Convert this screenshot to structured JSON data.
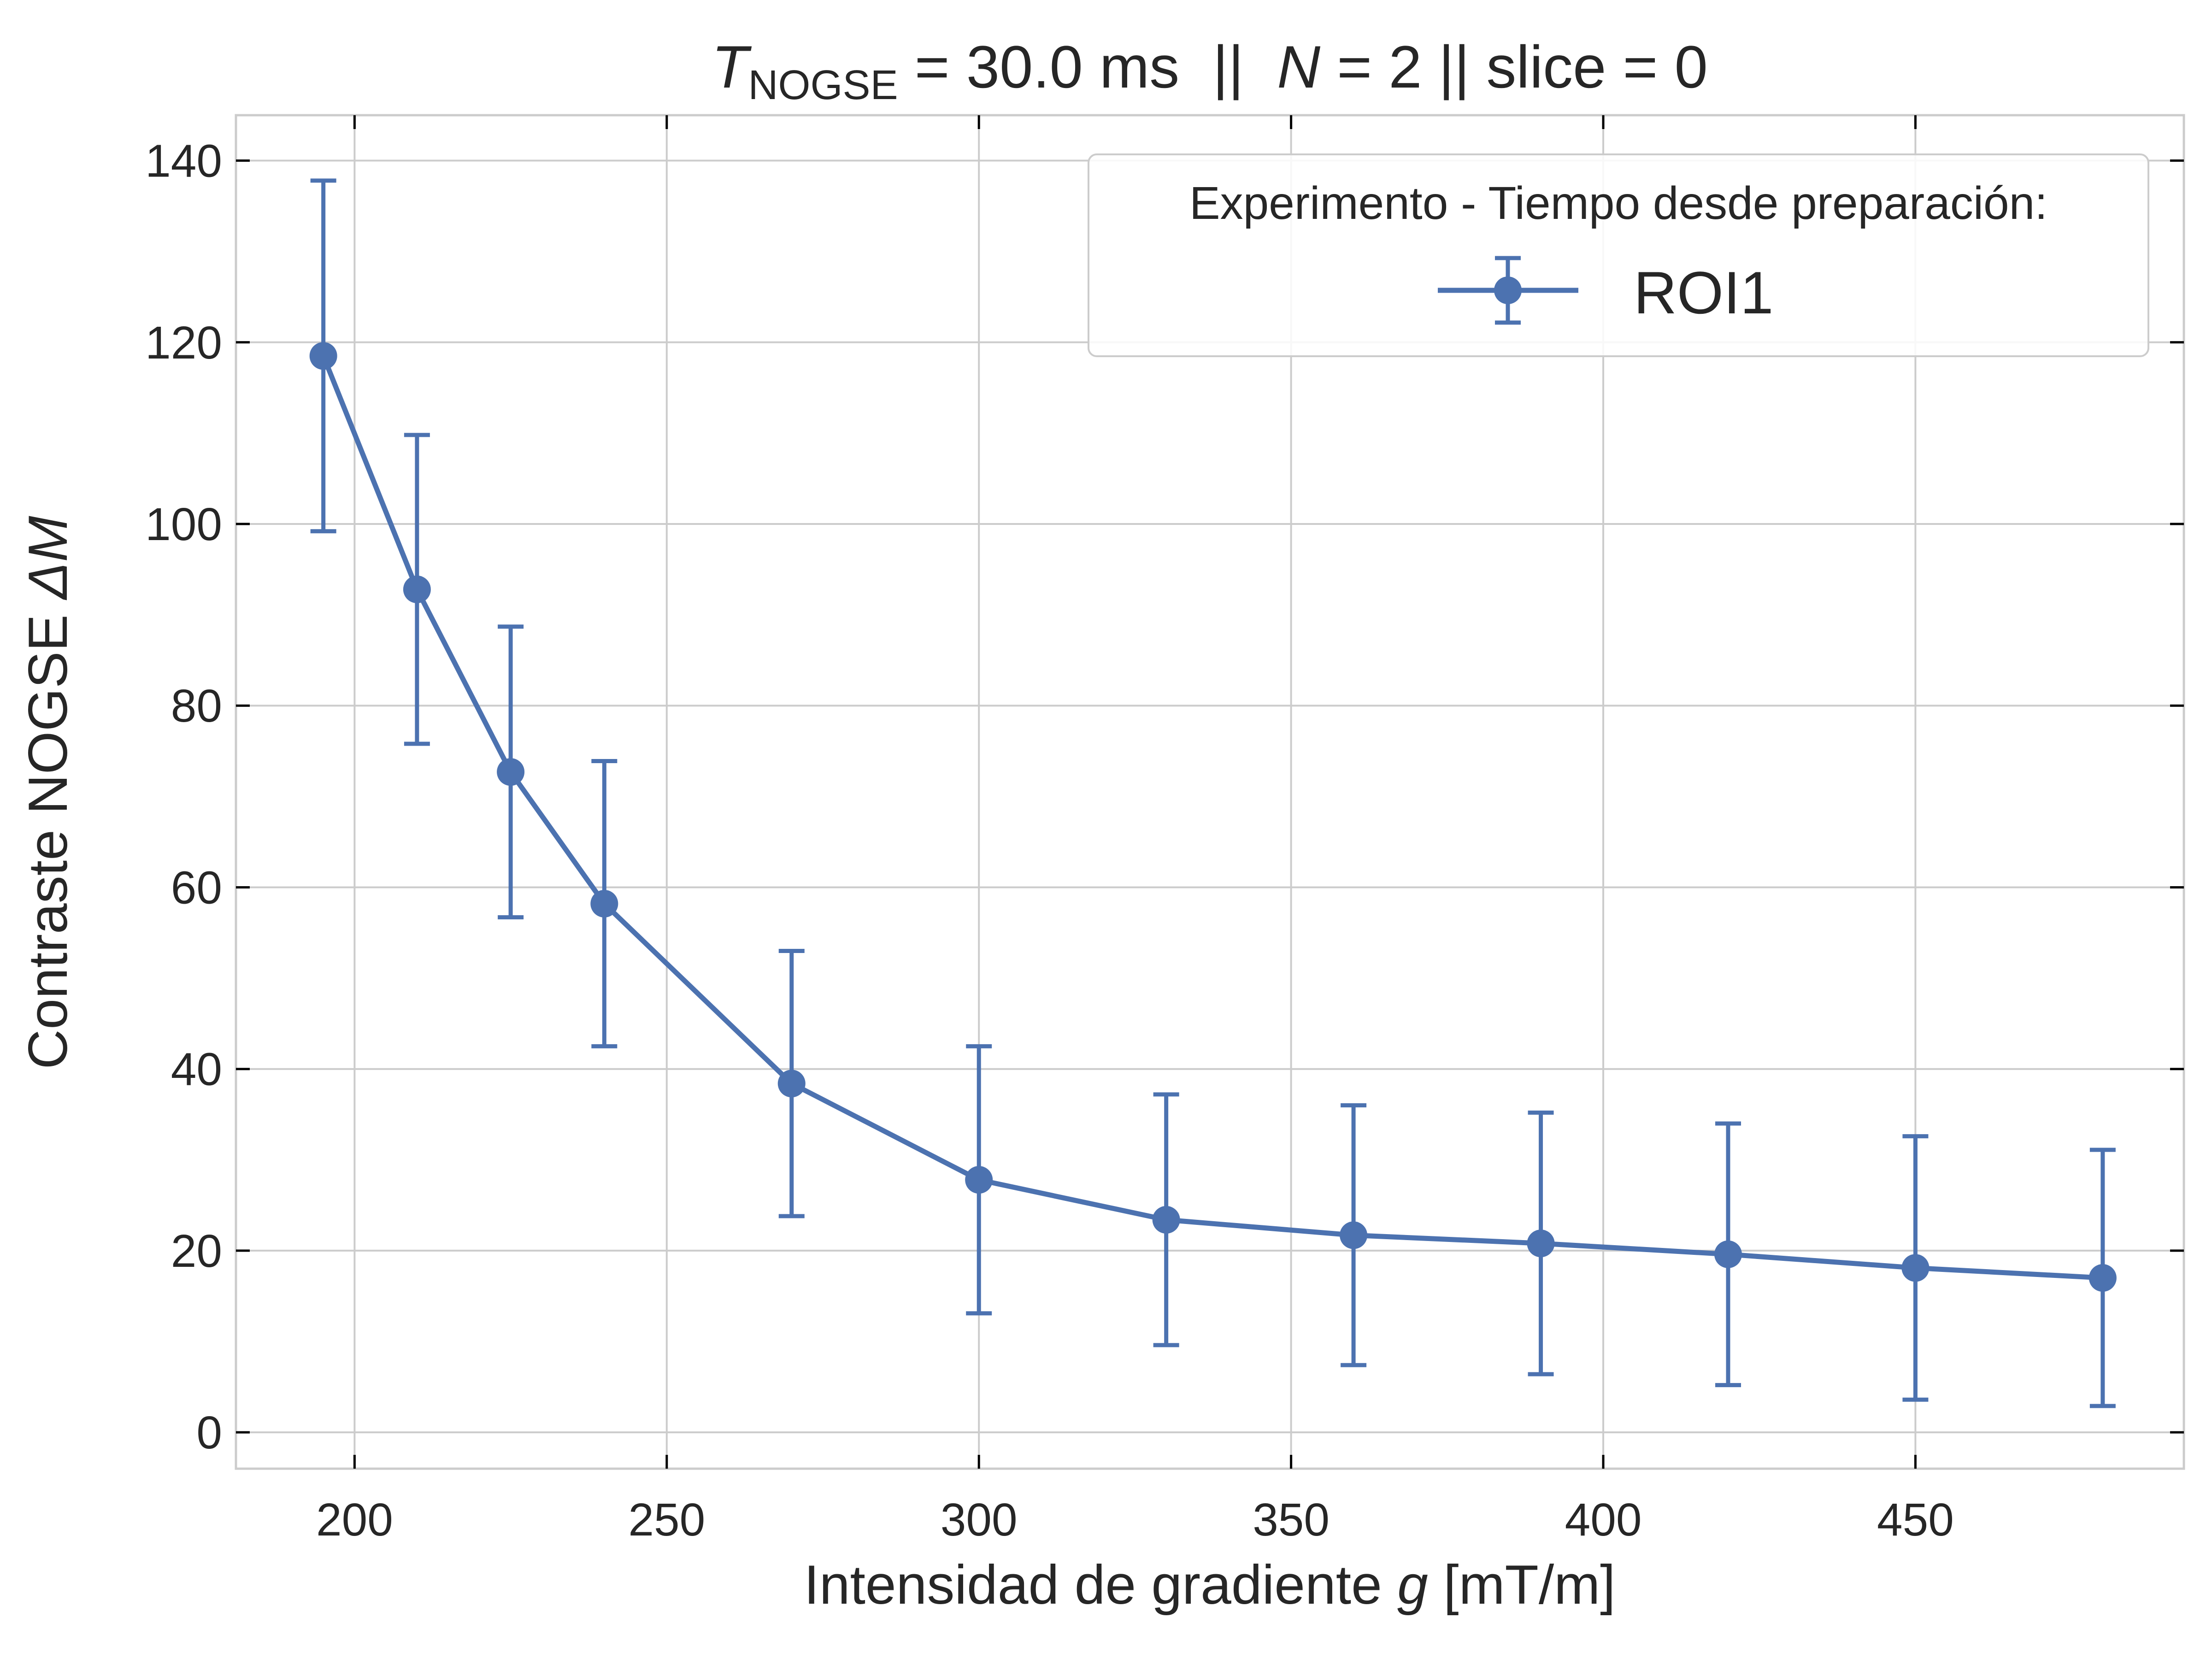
{
  "chart_data": {
    "type": "line",
    "title": {
      "t_symbol": "T",
      "t_subscript": "NOGSE",
      "t_rest": " = 30.0 ms  ||  ",
      "n_symbol": "N",
      "n_rest": " = 2 || slice = 0"
    },
    "xlabel": {
      "text": "Intensidad de gradiente ",
      "symbol": "g",
      "unit": " [mT/m]"
    },
    "ylabel": {
      "text": "Contraste NOGSE ",
      "symbol": "ΔM"
    },
    "xlim": [
      181,
      493
    ],
    "ylim": [
      -4,
      145
    ],
    "xticks": [
      200,
      250,
      300,
      350,
      400,
      450
    ],
    "yticks": [
      0,
      20,
      40,
      60,
      80,
      100,
      120,
      140
    ],
    "grid": true,
    "legend": {
      "placement": "top-right",
      "title": "Experimento - Tiempo desde preparación:"
    },
    "series": [
      {
        "name": "ROI1",
        "color": "#4c72b0",
        "marker": "circle",
        "x": [
          195,
          210,
          225,
          240,
          270,
          300,
          330,
          360,
          390,
          420,
          450,
          480
        ],
        "y": [
          118.5,
          92.8,
          72.7,
          58.2,
          38.4,
          27.8,
          23.4,
          21.7,
          20.8,
          19.6,
          18.1,
          17.0
        ],
        "yerr": [
          19.3,
          17.0,
          16.0,
          15.7,
          14.6,
          14.7,
          13.8,
          14.3,
          14.4,
          14.4,
          14.5,
          14.1
        ]
      }
    ]
  }
}
